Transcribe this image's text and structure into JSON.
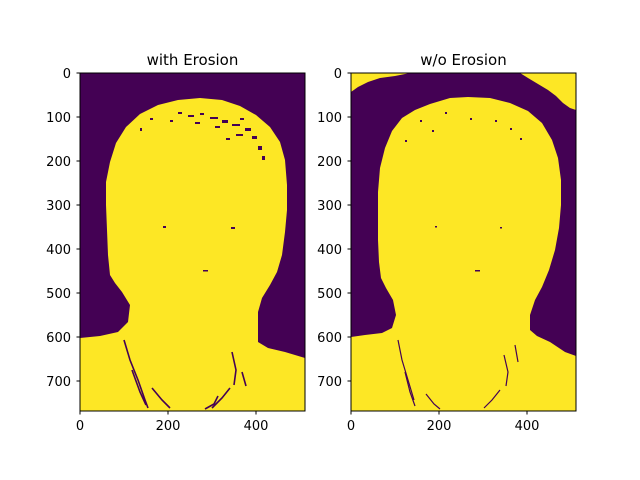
{
  "colors": {
    "background_class": "#440154",
    "foreground_class": "#fde725",
    "axis": "#000000"
  },
  "chart_data": [
    {
      "type": "heatmap",
      "title": "with Erosion",
      "xlabel": "",
      "ylabel": "",
      "xlim": [
        0,
        512
      ],
      "ylim": [
        768,
        0
      ],
      "xticks": [
        0,
        200,
        400
      ],
      "yticks": [
        0,
        100,
        200,
        300,
        400,
        500,
        600,
        700
      ],
      "values": [
        0,
        1
      ],
      "colormap": "viridis",
      "description_of_mask": "binary mask of a head and shoulders silhouette (yellow) on dark purple background; erosion removes most background speckle and the upper-right corner region"
    },
    {
      "type": "heatmap",
      "title": "w/o Erosion",
      "xlabel": "",
      "ylabel": "",
      "xlim": [
        0,
        512
      ],
      "ylim": [
        768,
        0
      ],
      "xticks": [
        0,
        200,
        400
      ],
      "yticks": [
        0,
        100,
        200,
        300,
        400,
        500,
        600,
        700
      ],
      "values": [
        0,
        1
      ],
      "colormap": "viridis",
      "description_of_mask": "same mask without erosion: larger silhouette with jagged edges and additional yellow regions in the top corners"
    }
  ]
}
